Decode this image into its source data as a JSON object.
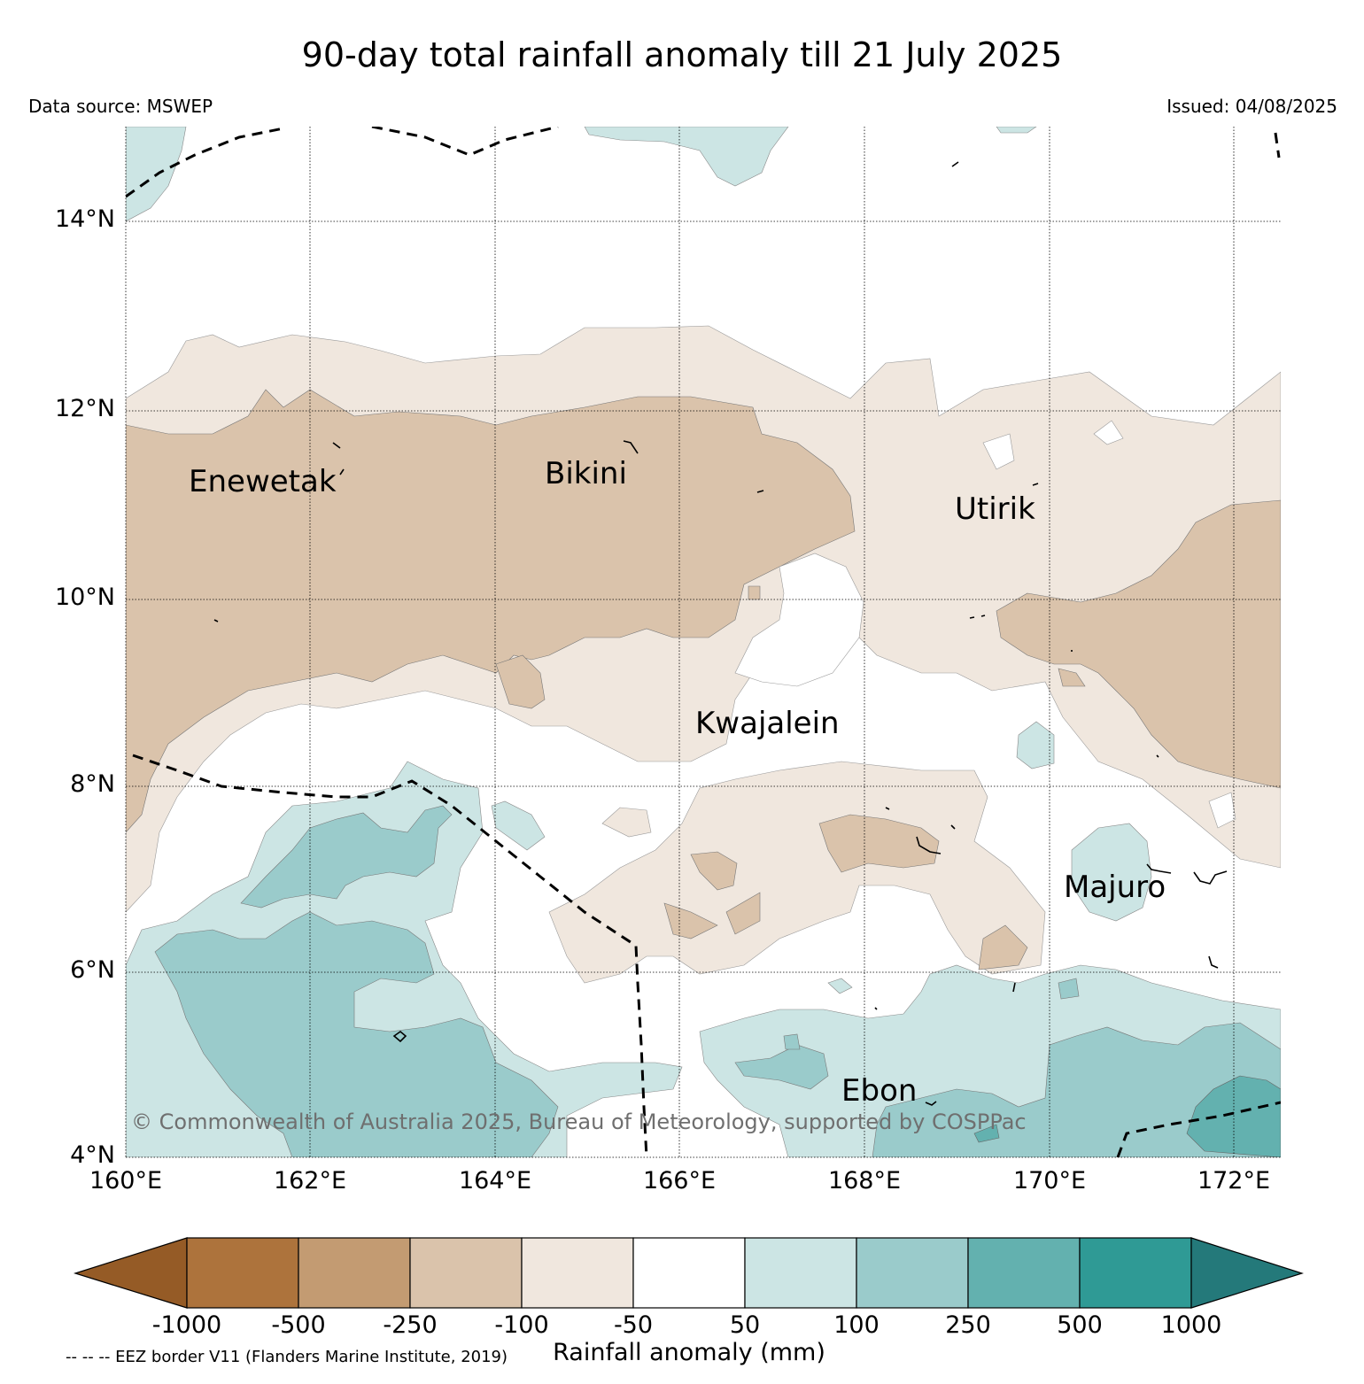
{
  "title": "90-day total rainfall anomaly till 21 July 2025",
  "data_source": "Data source: MSWEP",
  "issued": "Issued: 04/08/2025",
  "latitude_labels": [
    "14°N",
    "12°N",
    "10°N",
    "8°N",
    "6°N",
    "4°N"
  ],
  "longitude_labels": [
    "160°E",
    "162°E",
    "164°E",
    "166°E",
    "168°E",
    "170°E",
    "172°E"
  ],
  "places": {
    "enewetak": "Enewetak",
    "bikini": "Bikini",
    "utirik": "Utirik",
    "kwajalein": "Kwajalein",
    "majuro": "Majuro",
    "ebon": "Ebon"
  },
  "copyright": "© Commonwealth of Australia 2025, Bureau of Meteorology, supported by COSPPac",
  "colorbar": {
    "title": "Rainfall anomaly (mm)",
    "tick_labels": [
      "-1000",
      "-500",
      "-250",
      "-100",
      "-50",
      "50",
      "100",
      "250",
      "500",
      "1000"
    ],
    "colors": [
      "#955b26",
      "#ad733c",
      "#c39b72",
      "#dac3ab",
      "#f0e7de",
      "#ffffff",
      "#cce5e4",
      "#9acbcb",
      "#63b1af",
      "#2f9a95",
      "#24797a"
    ]
  },
  "eez_note": "-- -- -- EEZ border V11 (Flanders Marine Institute, 2019)"
}
